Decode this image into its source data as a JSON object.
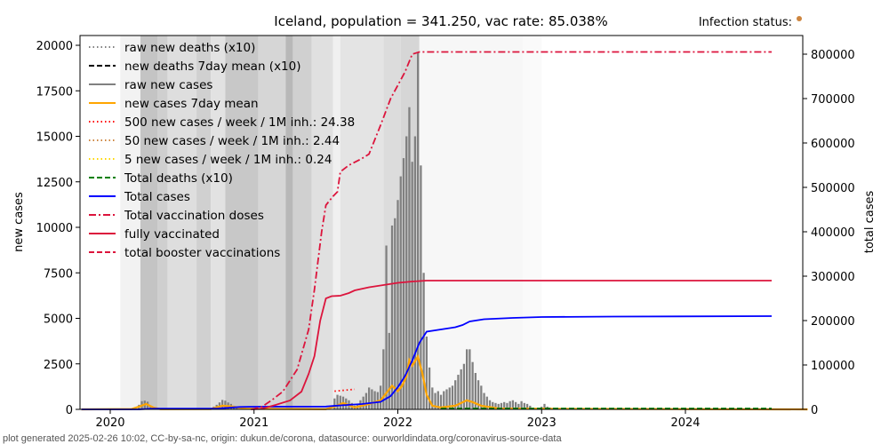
{
  "chart_data": {
    "type": "bar+line",
    "title": "Iceland, population = 341.250, vac rate: 85.038%",
    "infection_status_label": "Infection status:",
    "infection_status_color": "#cd853f",
    "xlabel": "",
    "ylabel_left": "new cases",
    "ylabel_right": "total cases",
    "xlim": [
      2019.8,
      2024.85
    ],
    "ylim_left": [
      0,
      20500
    ],
    "ylim_right": [
      0,
      840000
    ],
    "x_ticks": [
      "2020",
      "2021",
      "2022",
      "2023",
      "2024"
    ],
    "x_tick_values": [
      2020,
      2021,
      2022,
      2023,
      2024
    ],
    "y_ticks_left": [
      "0",
      "2500",
      "5000",
      "7500",
      "10000",
      "12500",
      "15000",
      "17500",
      "20000"
    ],
    "y_tick_values_left": [
      0,
      2500,
      5000,
      7500,
      10000,
      12500,
      15000,
      17500,
      20000
    ],
    "y_ticks_right": [
      "0",
      "100000",
      "200000",
      "300000",
      "400000",
      "500000",
      "600000",
      "700000",
      "800000"
    ],
    "y_tick_values_right": [
      0,
      100000,
      200000,
      300000,
      400000,
      500000,
      600000,
      700000,
      800000
    ],
    "legend_position": "top-left",
    "legend": [
      {
        "label": "raw new deaths (x10)",
        "color": "#808080",
        "style": "dotted"
      },
      {
        "label": "new deaths 7day mean (x10)",
        "color": "#000000",
        "style": "dashed"
      },
      {
        "label": "raw new cases",
        "color": "#808080",
        "style": "solid"
      },
      {
        "label": "new cases 7day mean",
        "color": "#ffa500",
        "style": "solid"
      },
      {
        "label": "500 new cases / week / 1M inh.: 24.38",
        "color": "#ff0000",
        "style": "dotted"
      },
      {
        "label": "50 new cases / week / 1M inh.: 2.44",
        "color": "#cd853f",
        "style": "dotted"
      },
      {
        "label": "5 new cases / week / 1M inh.: 0.24",
        "color": "#ffd700",
        "style": "dotted"
      },
      {
        "label": "Total deaths (x10)",
        "color": "#008000",
        "style": "dashed"
      },
      {
        "label": "Total cases",
        "color": "#0000ff",
        "style": "solid"
      },
      {
        "label": "Total vaccination doses",
        "color": "#dc143c",
        "style": "dashdot"
      },
      {
        "label": "fully vaccinated",
        "color": "#dc143c",
        "style": "solid"
      },
      {
        "label": "total booster vaccinations",
        "color": "#dc143c",
        "style": "dashed"
      }
    ],
    "background_bands": [
      {
        "x0": 2020.07,
        "x1": 2020.21,
        "shade": "#f2f2f2"
      },
      {
        "x0": 2020.21,
        "x1": 2020.33,
        "shade": "#c4c4c4"
      },
      {
        "x0": 2020.33,
        "x1": 2020.4,
        "shade": "#cfcfcf"
      },
      {
        "x0": 2020.4,
        "x1": 2020.6,
        "shade": "#dedede"
      },
      {
        "x0": 2020.6,
        "x1": 2020.7,
        "shade": "#d0d0d0"
      },
      {
        "x0": 2020.7,
        "x1": 2020.8,
        "shade": "#e2e2e2"
      },
      {
        "x0": 2020.8,
        "x1": 2021.03,
        "shade": "#c8c8c8"
      },
      {
        "x0": 2021.03,
        "x1": 2021.22,
        "shade": "#d6d6d6"
      },
      {
        "x0": 2021.22,
        "x1": 2021.27,
        "shade": "#b8b8b8"
      },
      {
        "x0": 2021.27,
        "x1": 2021.4,
        "shade": "#d0d0d0"
      },
      {
        "x0": 2021.4,
        "x1": 2021.55,
        "shade": "#e0e0e0"
      },
      {
        "x0": 2021.55,
        "x1": 2021.6,
        "shade": "#f0f0f0"
      },
      {
        "x0": 2021.6,
        "x1": 2021.9,
        "shade": "#e4e4e4"
      },
      {
        "x0": 2021.9,
        "x1": 2022.02,
        "shade": "#dcdcdc"
      },
      {
        "x0": 2022.02,
        "x1": 2022.15,
        "shade": "#d6d6d6"
      },
      {
        "x0": 2022.15,
        "x1": 2022.87,
        "shade": "#f7f7f7"
      },
      {
        "x0": 2022.87,
        "x1": 2023.0,
        "shade": "#fafafa"
      }
    ],
    "series": [
      {
        "name": "raw new cases",
        "type": "bar",
        "color": "#808080",
        "axis": "left",
        "points": [
          [
            2020.2,
            250
          ],
          [
            2020.22,
            450
          ],
          [
            2020.24,
            480
          ],
          [
            2020.26,
            420
          ],
          [
            2020.28,
            200
          ],
          [
            2020.3,
            80
          ],
          [
            2020.72,
            150
          ],
          [
            2020.74,
            250
          ],
          [
            2020.76,
            380
          ],
          [
            2020.78,
            520
          ],
          [
            2020.8,
            480
          ],
          [
            2020.82,
            380
          ],
          [
            2020.84,
            300
          ],
          [
            2020.86,
            200
          ],
          [
            2020.88,
            120
          ],
          [
            2021.56,
            600
          ],
          [
            2021.58,
            800
          ],
          [
            2021.6,
            750
          ],
          [
            2021.62,
            700
          ],
          [
            2021.64,
            600
          ],
          [
            2021.66,
            500
          ],
          [
            2021.68,
            350
          ],
          [
            2021.7,
            200
          ],
          [
            2021.72,
            300
          ],
          [
            2021.74,
            500
          ],
          [
            2021.76,
            700
          ],
          [
            2021.78,
            900
          ],
          [
            2021.8,
            1200
          ],
          [
            2021.82,
            1100
          ],
          [
            2021.84,
            1000
          ],
          [
            2021.86,
            950
          ],
          [
            2021.88,
            1300
          ],
          [
            2021.9,
            3300
          ],
          [
            2021.92,
            9000
          ],
          [
            2021.94,
            4200
          ],
          [
            2021.96,
            10100
          ],
          [
            2021.98,
            10500
          ],
          [
            2022.0,
            11500
          ],
          [
            2022.02,
            12800
          ],
          [
            2022.04,
            13800
          ],
          [
            2022.06,
            15000
          ],
          [
            2022.08,
            16600
          ],
          [
            2022.1,
            13600
          ],
          [
            2022.12,
            15000
          ],
          [
            2022.14,
            19600
          ],
          [
            2022.16,
            13400
          ],
          [
            2022.18,
            7500
          ],
          [
            2022.2,
            4000
          ],
          [
            2022.22,
            2300
          ],
          [
            2022.24,
            1200
          ],
          [
            2022.26,
            900
          ],
          [
            2022.28,
            1000
          ],
          [
            2022.3,
            800
          ],
          [
            2022.32,
            1000
          ],
          [
            2022.34,
            1100
          ],
          [
            2022.36,
            1200
          ],
          [
            2022.38,
            1300
          ],
          [
            2022.4,
            1600
          ],
          [
            2022.42,
            1900
          ],
          [
            2022.44,
            2200
          ],
          [
            2022.46,
            2500
          ],
          [
            2022.48,
            3300
          ],
          [
            2022.5,
            3300
          ],
          [
            2022.52,
            2600
          ],
          [
            2022.54,
            2000
          ],
          [
            2022.56,
            1600
          ],
          [
            2022.58,
            1300
          ],
          [
            2022.6,
            900
          ],
          [
            2022.62,
            700
          ],
          [
            2022.64,
            500
          ],
          [
            2022.66,
            400
          ],
          [
            2022.68,
            350
          ],
          [
            2022.7,
            300
          ],
          [
            2022.72,
            350
          ],
          [
            2022.74,
            400
          ],
          [
            2022.76,
            350
          ],
          [
            2022.78,
            450
          ],
          [
            2022.8,
            500
          ],
          [
            2022.82,
            400
          ],
          [
            2022.84,
            300
          ],
          [
            2022.86,
            450
          ],
          [
            2022.88,
            350
          ],
          [
            2022.9,
            300
          ],
          [
            2022.92,
            200
          ],
          [
            2023.0,
            150
          ],
          [
            2023.02,
            300
          ],
          [
            2023.04,
            150
          ],
          [
            2023.06,
            100
          ],
          [
            2023.08,
            80
          ]
        ]
      },
      {
        "name": "new cases 7day mean",
        "type": "line",
        "color": "#ffa500",
        "axis": "left",
        "points": [
          [
            2019.8,
            0
          ],
          [
            2020.15,
            20
          ],
          [
            2020.2,
            150
          ],
          [
            2020.25,
            300
          ],
          [
            2020.3,
            100
          ],
          [
            2020.35,
            10
          ],
          [
            2020.7,
            20
          ],
          [
            2020.78,
            200
          ],
          [
            2020.85,
            150
          ],
          [
            2020.95,
            30
          ],
          [
            2021.5,
            10
          ],
          [
            2021.56,
            150
          ],
          [
            2021.62,
            350
          ],
          [
            2021.7,
            100
          ],
          [
            2021.8,
            300
          ],
          [
            2021.88,
            500
          ],
          [
            2021.92,
            900
          ],
          [
            2021.96,
            1300
          ],
          [
            2022.0,
            1000
          ],
          [
            2022.03,
            1300
          ],
          [
            2022.06,
            1800
          ],
          [
            2022.08,
            2700
          ],
          [
            2022.1,
            2400
          ],
          [
            2022.14,
            2900
          ],
          [
            2022.17,
            2000
          ],
          [
            2022.2,
            800
          ],
          [
            2022.24,
            200
          ],
          [
            2022.3,
            100
          ],
          [
            2022.4,
            200
          ],
          [
            2022.48,
            500
          ],
          [
            2022.52,
            400
          ],
          [
            2022.58,
            200
          ],
          [
            2022.7,
            50
          ],
          [
            2023.0,
            30
          ],
          [
            2024.85,
            0
          ]
        ]
      },
      {
        "name": "Total cases",
        "type": "line",
        "color": "#0000ff",
        "axis": "right",
        "points": [
          [
            2019.8,
            0
          ],
          [
            2020.2,
            0
          ],
          [
            2020.3,
            1800
          ],
          [
            2020.75,
            2000
          ],
          [
            2020.9,
            5500
          ],
          [
            2021.0,
            6000
          ],
          [
            2021.5,
            6500
          ],
          [
            2021.6,
            9000
          ],
          [
            2021.75,
            12000
          ],
          [
            2021.88,
            17000
          ],
          [
            2021.95,
            30000
          ],
          [
            2022.0,
            50000
          ],
          [
            2022.05,
            75000
          ],
          [
            2022.1,
            110000
          ],
          [
            2022.15,
            150000
          ],
          [
            2022.2,
            175000
          ],
          [
            2022.3,
            180000
          ],
          [
            2022.4,
            185000
          ],
          [
            2022.45,
            190000
          ],
          [
            2022.5,
            198000
          ],
          [
            2022.6,
            203000
          ],
          [
            2022.8,
            206000
          ],
          [
            2023.0,
            208000
          ],
          [
            2023.5,
            209000
          ],
          [
            2024.6,
            210000
          ]
        ]
      },
      {
        "name": "Total vaccination doses",
        "type": "line",
        "color": "#dc143c",
        "axis": "right",
        "points": [
          [
            2020.98,
            0
          ],
          [
            2021.05,
            5000
          ],
          [
            2021.12,
            20000
          ],
          [
            2021.2,
            40000
          ],
          [
            2021.3,
            90000
          ],
          [
            2021.38,
            180000
          ],
          [
            2021.42,
            270000
          ],
          [
            2021.47,
            400000
          ],
          [
            2021.5,
            460000
          ],
          [
            2021.55,
            480000
          ],
          [
            2021.58,
            490000
          ],
          [
            2021.6,
            535000
          ],
          [
            2021.66,
            550000
          ],
          [
            2021.75,
            565000
          ],
          [
            2021.8,
            575000
          ],
          [
            2021.88,
            640000
          ],
          [
            2021.95,
            700000
          ],
          [
            2022.0,
            730000
          ],
          [
            2022.05,
            760000
          ],
          [
            2022.1,
            800000
          ],
          [
            2022.15,
            805000
          ],
          [
            2024.6,
            805000
          ]
        ]
      },
      {
        "name": "fully vaccinated",
        "type": "line",
        "color": "#dc143c",
        "axis": "right",
        "points": [
          [
            2020.98,
            0
          ],
          [
            2021.05,
            1000
          ],
          [
            2021.15,
            10000
          ],
          [
            2021.25,
            20000
          ],
          [
            2021.33,
            40000
          ],
          [
            2021.38,
            80000
          ],
          [
            2021.42,
            120000
          ],
          [
            2021.46,
            200000
          ],
          [
            2021.5,
            250000
          ],
          [
            2021.54,
            255000
          ],
          [
            2021.6,
            256000
          ],
          [
            2021.66,
            262000
          ],
          [
            2021.7,
            268000
          ],
          [
            2021.8,
            275000
          ],
          [
            2021.9,
            280000
          ],
          [
            2022.0,
            285000
          ],
          [
            2022.1,
            288000
          ],
          [
            2022.2,
            290000
          ],
          [
            2024.6,
            290000
          ]
        ]
      },
      {
        "name": "Total deaths (x10)",
        "type": "line",
        "color": "#008000",
        "axis": "right",
        "points": [
          [
            2022.3,
            2000
          ],
          [
            2024.6,
            2000
          ]
        ]
      },
      {
        "name": "500 new cases / week / 1M inh.",
        "type": "line",
        "color": "#ff0000",
        "axis": "left",
        "points": [
          [
            2021.56,
            1000
          ],
          [
            2021.7,
            1100
          ]
        ]
      }
    ]
  },
  "footer": "plot generated 2025-02-26 10:02, CC-by-sa-nc, origin: dukun.de/corona, datasource: ourworldindata.org/coronavirus-source-data"
}
